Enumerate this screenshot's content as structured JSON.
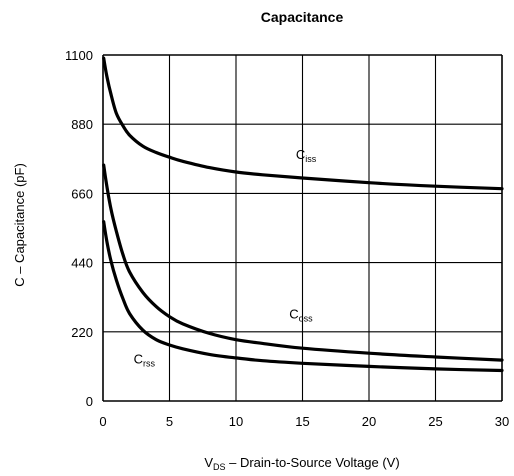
{
  "chart_data": {
    "type": "line",
    "title": "Capacitance",
    "xlabel": {
      "main": "V",
      "sub": "DS",
      "rest": " – Drain-to-Source Voltage (V)"
    },
    "ylabel": "C – Capacitance (pF)",
    "xlim": [
      0,
      30
    ],
    "ylim": [
      0,
      1100
    ],
    "x_ticks": [
      "0",
      "5",
      "10",
      "15",
      "20",
      "25",
      "30"
    ],
    "y_ticks": [
      "0",
      "220",
      "440",
      "660",
      "880",
      "1100"
    ],
    "grid": true,
    "series": [
      {
        "name": {
          "main": "C",
          "sub": "iss"
        },
        "label_at": [
          14.5,
          770
        ],
        "points": [
          [
            0.05,
            1090
          ],
          [
            0.3,
            1030
          ],
          [
            0.6,
            975
          ],
          [
            1,
            915
          ],
          [
            1.5,
            875
          ],
          [
            2,
            845
          ],
          [
            3,
            810
          ],
          [
            4,
            790
          ],
          [
            5,
            775
          ],
          [
            6,
            762
          ],
          [
            8,
            742
          ],
          [
            10,
            728
          ],
          [
            12,
            719
          ],
          [
            15,
            709
          ],
          [
            20,
            694
          ],
          [
            25,
            683
          ],
          [
            30,
            675
          ]
        ]
      },
      {
        "name": {
          "main": "C",
          "sub": "oss"
        },
        "label_at": [
          14,
          262
        ],
        "points": [
          [
            0.05,
            750
          ],
          [
            0.3,
            680
          ],
          [
            0.6,
            610
          ],
          [
            1,
            540
          ],
          [
            1.5,
            465
          ],
          [
            2,
            410
          ],
          [
            3,
            345
          ],
          [
            4,
            300
          ],
          [
            5,
            268
          ],
          [
            6,
            245
          ],
          [
            8,
            215
          ],
          [
            10,
            195
          ],
          [
            12,
            183
          ],
          [
            15,
            168
          ],
          [
            20,
            152
          ],
          [
            25,
            140
          ],
          [
            30,
            130
          ]
        ]
      },
      {
        "name": {
          "main": "C",
          "sub": "rss"
        },
        "label_at": [
          2.3,
          120
        ],
        "points": [
          [
            0.05,
            570
          ],
          [
            0.3,
            505
          ],
          [
            0.6,
            445
          ],
          [
            1,
            385
          ],
          [
            1.5,
            325
          ],
          [
            2,
            278
          ],
          [
            3,
            225
          ],
          [
            4,
            195
          ],
          [
            5,
            178
          ],
          [
            6,
            166
          ],
          [
            8,
            148
          ],
          [
            10,
            137
          ],
          [
            12,
            128
          ],
          [
            15,
            120
          ],
          [
            20,
            110
          ],
          [
            25,
            102
          ],
          [
            30,
            97
          ]
        ]
      }
    ]
  }
}
